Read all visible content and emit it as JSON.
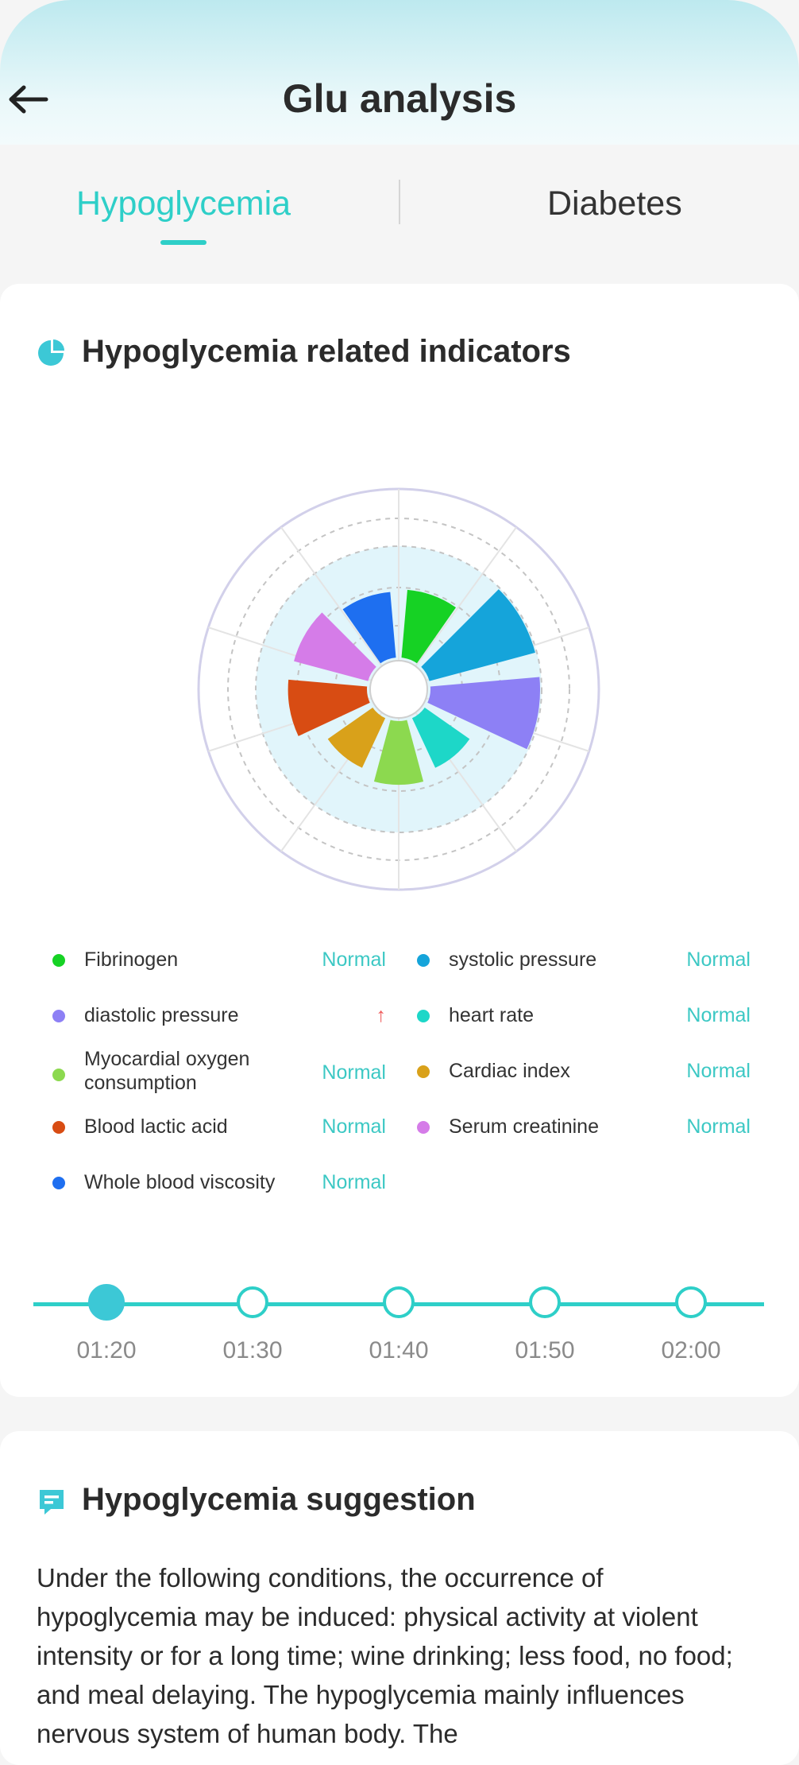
{
  "header": {
    "title": "Glu analysis",
    "back_icon": "arrow-left-icon"
  },
  "tabs": [
    {
      "label": "Hypoglycemia",
      "active": true
    },
    {
      "label": "Diabetes",
      "active": false
    }
  ],
  "indicators": {
    "title": "Hypoglycemia related indicators",
    "icon": "pie-chart-icon",
    "chart_data": {
      "type": "polar-bar",
      "series": [
        {
          "name": "Fibrinogen",
          "value": 0.62,
          "color": "#16d224"
        },
        {
          "name": "systolic pressure",
          "value": 1.0,
          "color": "#15a4da"
        },
        {
          "name": "diastolic pressure",
          "value": 1.0,
          "color": "#8d80f5"
        },
        {
          "name": "heart rate",
          "value": 0.5,
          "color": "#1dd7c8"
        },
        {
          "name": "Myocardial oxygen consumption",
          "value": 0.58,
          "color": "#8cd94f"
        },
        {
          "name": "Cardiac index",
          "value": 0.5,
          "color": "#d9a11a"
        },
        {
          "name": "Blood lactic acid",
          "value": 0.72,
          "color": "#d84c13"
        },
        {
          "name": "Serum creatinine",
          "value": 0.7,
          "color": "#d57ce8"
        },
        {
          "name": "Whole blood viscosity",
          "value": 0.6,
          "color": "#1e6ff0"
        }
      ]
    },
    "legend": [
      {
        "name": "Fibrinogen",
        "status": "Normal",
        "color": "#16d224"
      },
      {
        "name": "systolic pressure",
        "status": "Normal",
        "color": "#15a4da"
      },
      {
        "name": "diastolic pressure",
        "status": "↑",
        "color": "#8d80f5"
      },
      {
        "name": "heart rate",
        "status": "Normal",
        "color": "#1dd7c8"
      },
      {
        "name": "Myocardial oxygen consumption",
        "status": "Normal",
        "color": "#8cd94f"
      },
      {
        "name": "Cardiac index",
        "status": "Normal",
        "color": "#d9a11a"
      },
      {
        "name": "Blood lactic acid",
        "status": "Normal",
        "color": "#d84c13"
      },
      {
        "name": "Serum creatinine",
        "status": "Normal",
        "color": "#d57ce8"
      },
      {
        "name": "Whole blood viscosity",
        "status": "Normal",
        "color": "#1e6ff0"
      }
    ],
    "timeline": {
      "times": [
        "01:20",
        "01:30",
        "01:40",
        "01:50",
        "02:00"
      ],
      "active_index": 0
    }
  },
  "suggestion": {
    "title": "Hypoglycemia suggestion",
    "icon": "note-icon",
    "text": "Under the following conditions, the occurrence of hypoglycemia may be induced: physical activity at violent intensity or for a long time; wine drinking; less food, no food; and meal delaying. The hypoglycemia mainly influences nervous system of human body. The"
  },
  "colors": {
    "accent": "#2ecfc8",
    "text": "#2b2b2b",
    "warning": "#ef5a5a"
  }
}
